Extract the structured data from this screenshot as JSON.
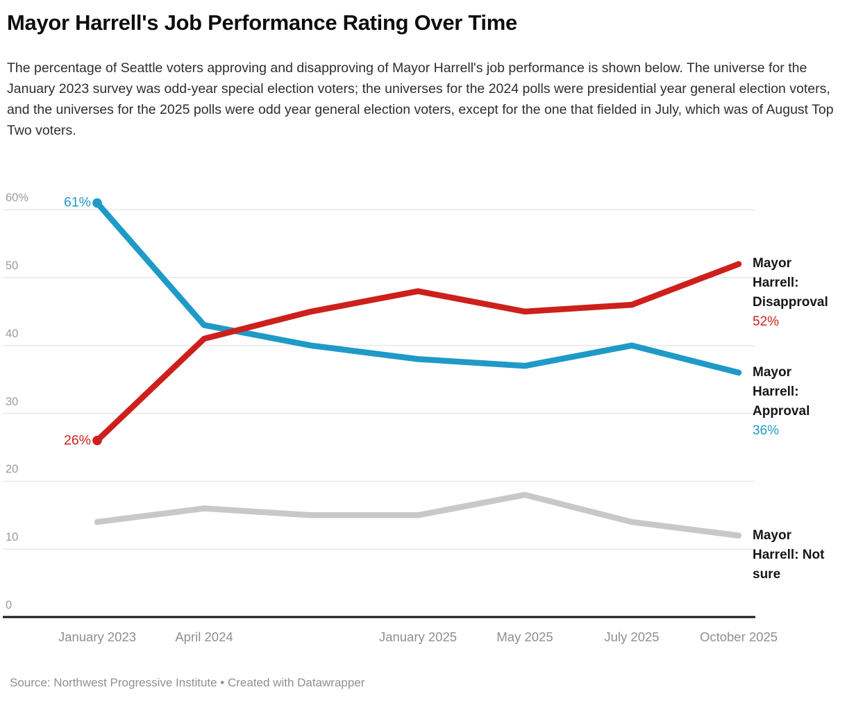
{
  "header": {
    "title": "Mayor Harrell's Job Performance Rating Over Time",
    "description": "The percentage of Seattle voters approving and disapproving of Mayor Harrell's job performance is shown below. The universe for the January 2023 survey was odd-year special election voters; the universes for the 2024 polls were presidential year general election voters, and the universes for the 2025 polls were odd year general election voters, except for the one that fielded in July, which was of August Top Two voters.",
    "text_color": "#2e2e2e"
  },
  "chart_data": {
    "type": "line",
    "title": "Mayor Harrell's Job Performance Rating Over Time",
    "x_tick_labels": [
      "January 2023",
      "April 2024",
      "",
      "January 2025",
      "May 2025",
      "July 2025",
      "October 2025"
    ],
    "y_ticks": [
      {
        "value": 0,
        "label": "0"
      },
      {
        "value": 10,
        "label": "10"
      },
      {
        "value": 20,
        "label": "20"
      },
      {
        "value": 30,
        "label": "30"
      },
      {
        "value": 40,
        "label": "40"
      },
      {
        "value": 50,
        "label": "50"
      },
      {
        "value": 60,
        "label": "60%"
      }
    ],
    "ylim": [
      0,
      63
    ],
    "grid": "horizontal",
    "legend_position": "line-ends-right",
    "series": [
      {
        "name": "Mayor Harrell: Approval",
        "color": "#1f9ac6",
        "values": [
          61,
          43,
          40,
          38,
          37,
          40,
          36
        ],
        "start_label": "61%",
        "start_dot": true,
        "end_label_lines": [
          "Mayor",
          "Harrell:",
          "Approval"
        ],
        "end_value_label": "36%"
      },
      {
        "name": "Mayor Harrell: Disapproval",
        "color": "#cd201c",
        "values": [
          26,
          41,
          45,
          48,
          45,
          46,
          52
        ],
        "start_label": "26%",
        "start_dot": true,
        "end_label_lines": [
          "Mayor",
          "Harrell:",
          "Disapproval"
        ],
        "end_value_label": "52%"
      },
      {
        "name": "Mayor Harrell: Not sure",
        "color": "#c8c8c8",
        "values": [
          14,
          16,
          15,
          15,
          18,
          14,
          12
        ],
        "start_label": null,
        "start_dot": false,
        "end_label_lines": [
          "Mayor",
          "Harrell: Not",
          "sure"
        ],
        "end_value_label": null
      }
    ],
    "gridline_color": "#e7e7e7",
    "baseline_color": "#161616"
  },
  "footer": {
    "text": "Source: Northwest Progressive Institute • Created with Datawrapper"
  }
}
